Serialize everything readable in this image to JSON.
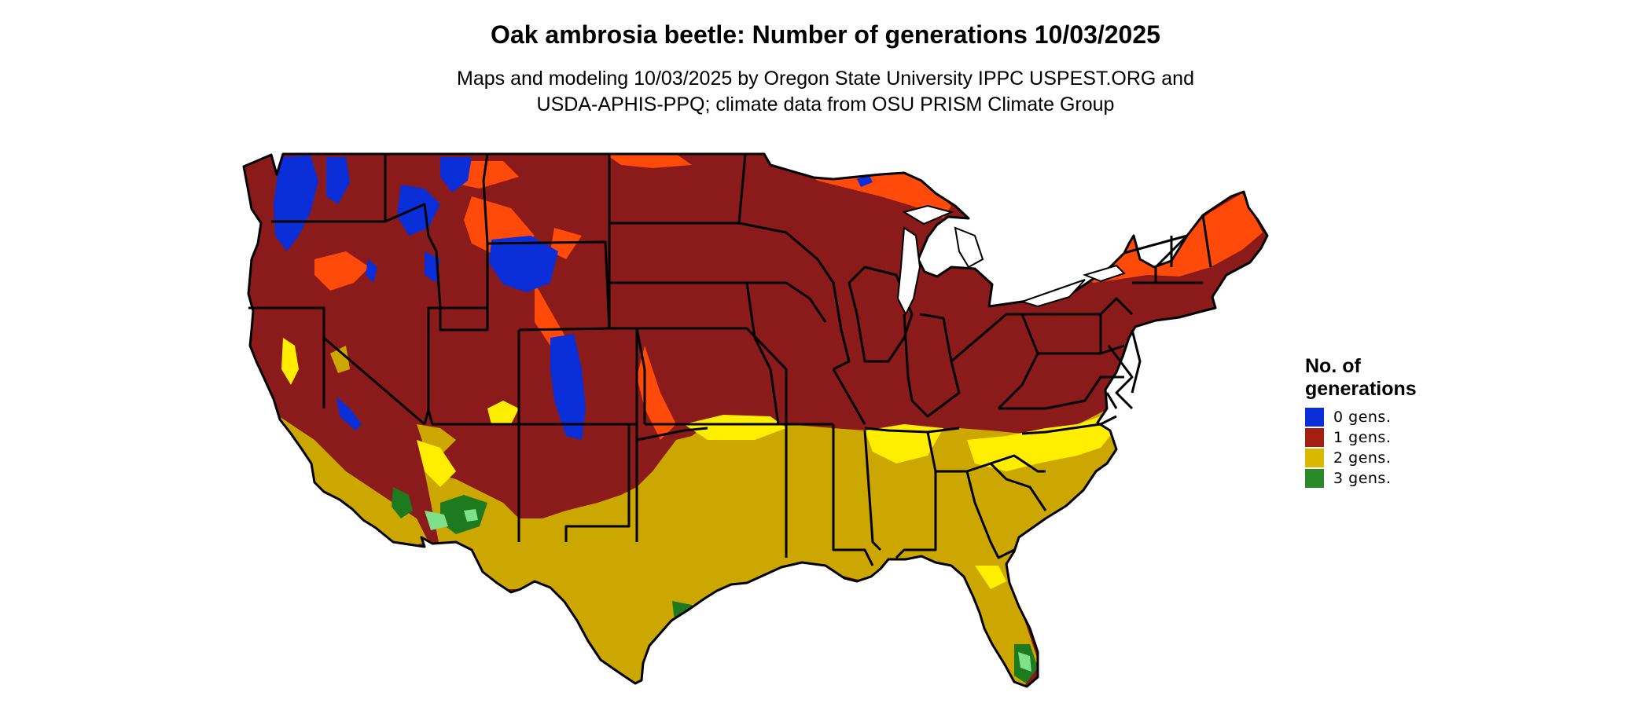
{
  "title": "Oak ambrosia beetle: Number of generations 10/03/2025",
  "subtitle": {
    "line1": "Maps and modeling 10/03/2025 by Oregon State University IPPC USPEST.ORG and",
    "line2": "USDA-APHIS-PPQ; climate data from OSU PRISM Climate Group"
  },
  "legend": {
    "title": "No. of generations",
    "items": [
      {
        "label": "0 gens.",
        "color": "#0a2fd8"
      },
      {
        "label": "1 gens.",
        "color": "#a51e12"
      },
      {
        "label": "2 gens.",
        "color": "#d9b800"
      },
      {
        "label": "3 gens.",
        "color": "#2a8a2a"
      }
    ]
  },
  "map_colors": {
    "gen0": "#0a2fd8",
    "gen1": "#8b1a1a",
    "gen1_light": "#ff4a0a",
    "gen2": "#cca700",
    "gen2_light": "#ffee00",
    "gen3": "#1e7a1e",
    "gen3_light": "#7fe08a",
    "border": "#000000"
  }
}
